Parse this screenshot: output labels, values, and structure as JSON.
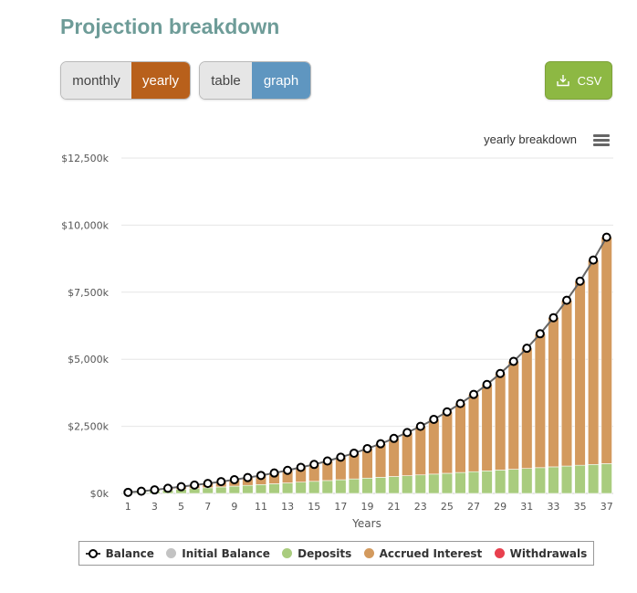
{
  "header": {
    "title": "Projection breakdown"
  },
  "controls": {
    "period": {
      "options": [
        "monthly",
        "yearly"
      ],
      "selected": "yearly"
    },
    "view": {
      "options": [
        "table",
        "graph"
      ],
      "selected": "graph"
    },
    "csv_label": "CSV"
  },
  "colors": {
    "title": "#6e9c98",
    "period_active": "#b8601b",
    "view_active": "#5f96c0",
    "csv": "#8db843",
    "deposits": "#a9cc7e",
    "accrued_interest": "#d39a5e",
    "initial_balance": "#c3c3c3",
    "withdrawals": "#e8404e",
    "balance_line": "#666666",
    "gridline": "#e6e6e6"
  },
  "chart_data": {
    "type": "bar",
    "subtitle": "yearly breakdown",
    "xlabel": "Years",
    "ylabel": "",
    "ylim": [
      0,
      12500
    ],
    "yticks": [
      0,
      2500,
      5000,
      7500,
      10000,
      12500
    ],
    "ytick_labels": [
      "$0k",
      "$2,500k",
      "$5,000k",
      "$7,500k",
      "$10,000k",
      "$12,500k"
    ],
    "xtick_labels": [
      "1",
      "3",
      "5",
      "7",
      "9",
      "11",
      "13",
      "15",
      "17",
      "19",
      "21",
      "23",
      "25",
      "27",
      "29",
      "31",
      "33",
      "35",
      "37"
    ],
    "stacking": "normal",
    "grid": true,
    "legend_position": "bottom",
    "categories": [
      1,
      2,
      3,
      4,
      5,
      6,
      7,
      8,
      9,
      10,
      11,
      12,
      13,
      14,
      15,
      16,
      17,
      18,
      19,
      20,
      21,
      22,
      23,
      24,
      25,
      26,
      27,
      28,
      29,
      30,
      31,
      32,
      33,
      34,
      35,
      36,
      37
    ],
    "series": [
      {
        "name": "Initial Balance",
        "values": [
          0,
          0,
          0,
          0,
          0,
          0,
          0,
          0,
          0,
          0,
          0,
          0,
          0,
          0,
          0,
          0,
          0,
          0,
          0,
          0,
          0,
          0,
          0,
          0,
          0,
          0,
          0,
          0,
          0,
          0,
          0,
          0,
          0,
          0,
          0,
          0,
          0
        ]
      },
      {
        "name": "Deposits",
        "values": [
          30,
          60,
          90,
          120,
          150,
          180,
          210,
          240,
          270,
          300,
          330,
          360,
          390,
          420,
          450,
          480,
          510,
          540,
          570,
          600,
          630,
          660,
          690,
          720,
          750,
          780,
          810,
          840,
          870,
          900,
          930,
          960,
          990,
          1020,
          1050,
          1080,
          1110
        ]
      },
      {
        "name": "Accrued Interest",
        "values": [
          10,
          20,
          40,
          70,
          100,
          130,
          160,
          200,
          240,
          290,
          340,
          400,
          470,
          550,
          630,
          730,
          840,
          960,
          1100,
          1250,
          1420,
          1610,
          1810,
          2040,
          2290,
          2570,
          2880,
          3220,
          3600,
          4020,
          4480,
          4990,
          5560,
          6180,
          6860,
          7620,
          8440
        ]
      },
      {
        "name": "Withdrawals",
        "values": [
          0,
          0,
          0,
          0,
          0,
          0,
          0,
          0,
          0,
          0,
          0,
          0,
          0,
          0,
          0,
          0,
          0,
          0,
          0,
          0,
          0,
          0,
          0,
          0,
          0,
          0,
          0,
          0,
          0,
          0,
          0,
          0,
          0,
          0,
          0,
          0,
          0
        ]
      }
    ],
    "line_series": {
      "name": "Balance",
      "values": [
        40,
        80,
        130,
        190,
        250,
        310,
        370,
        440,
        510,
        590,
        670,
        760,
        860,
        970,
        1080,
        1210,
        1350,
        1500,
        1670,
        1850,
        2050,
        2270,
        2500,
        2760,
        3040,
        3350,
        3690,
        4060,
        4470,
        4920,
        5410,
        5950,
        6550,
        7200,
        7910,
        8700,
        9550
      ]
    }
  }
}
